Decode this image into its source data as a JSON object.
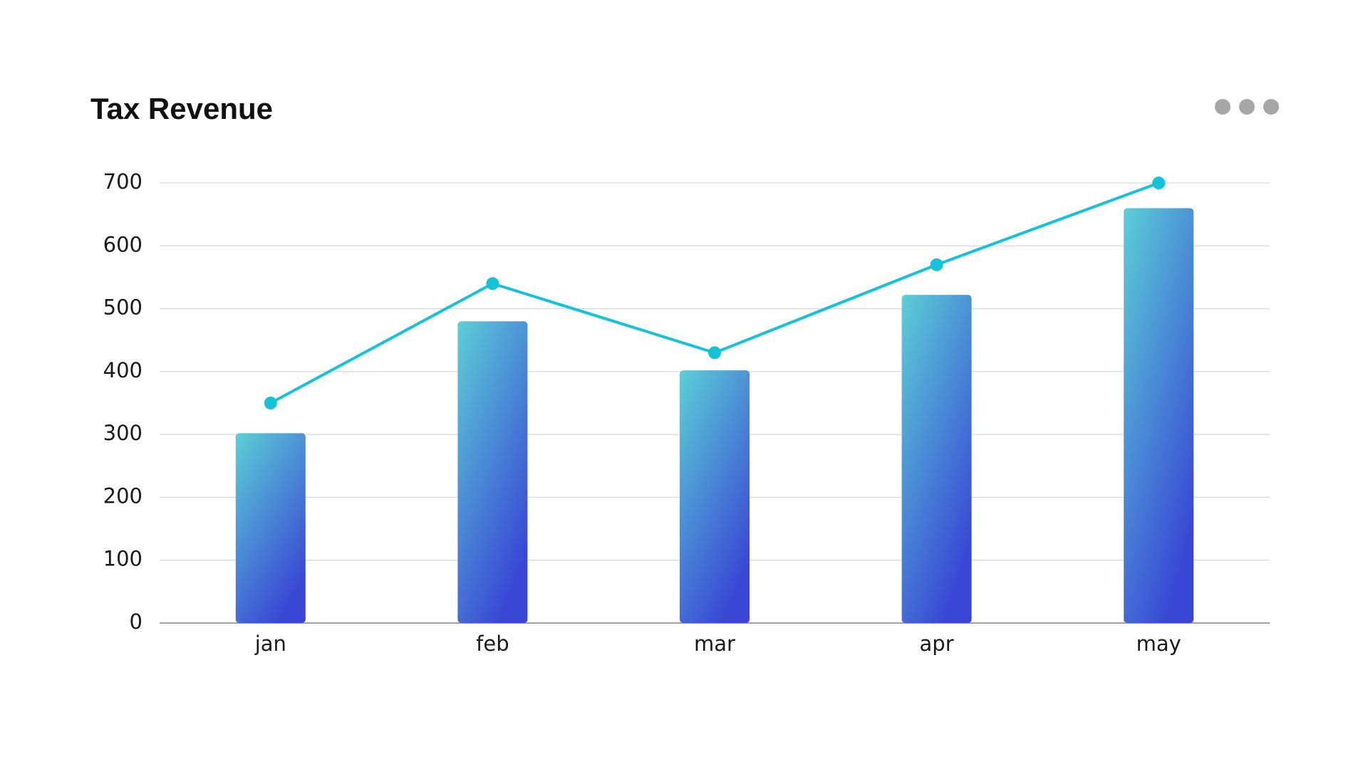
{
  "chart_data": {
    "type": "combo",
    "title": "Tax Revenue",
    "categories": [
      "jan",
      "feb",
      "mar",
      "apr",
      "may"
    ],
    "series": [
      {
        "type": "bar",
        "color": "#3a47d5",
        "values": [
          302,
          480,
          402,
          522,
          660
        ]
      },
      {
        "type": "line",
        "color": "#14c3d8",
        "values": [
          350,
          540,
          430,
          570,
          700
        ]
      }
    ],
    "ylim": [
      0,
      700
    ],
    "yticks": [
      0,
      100,
      200,
      300,
      400,
      500,
      600,
      700
    ],
    "grid": true
  }
}
